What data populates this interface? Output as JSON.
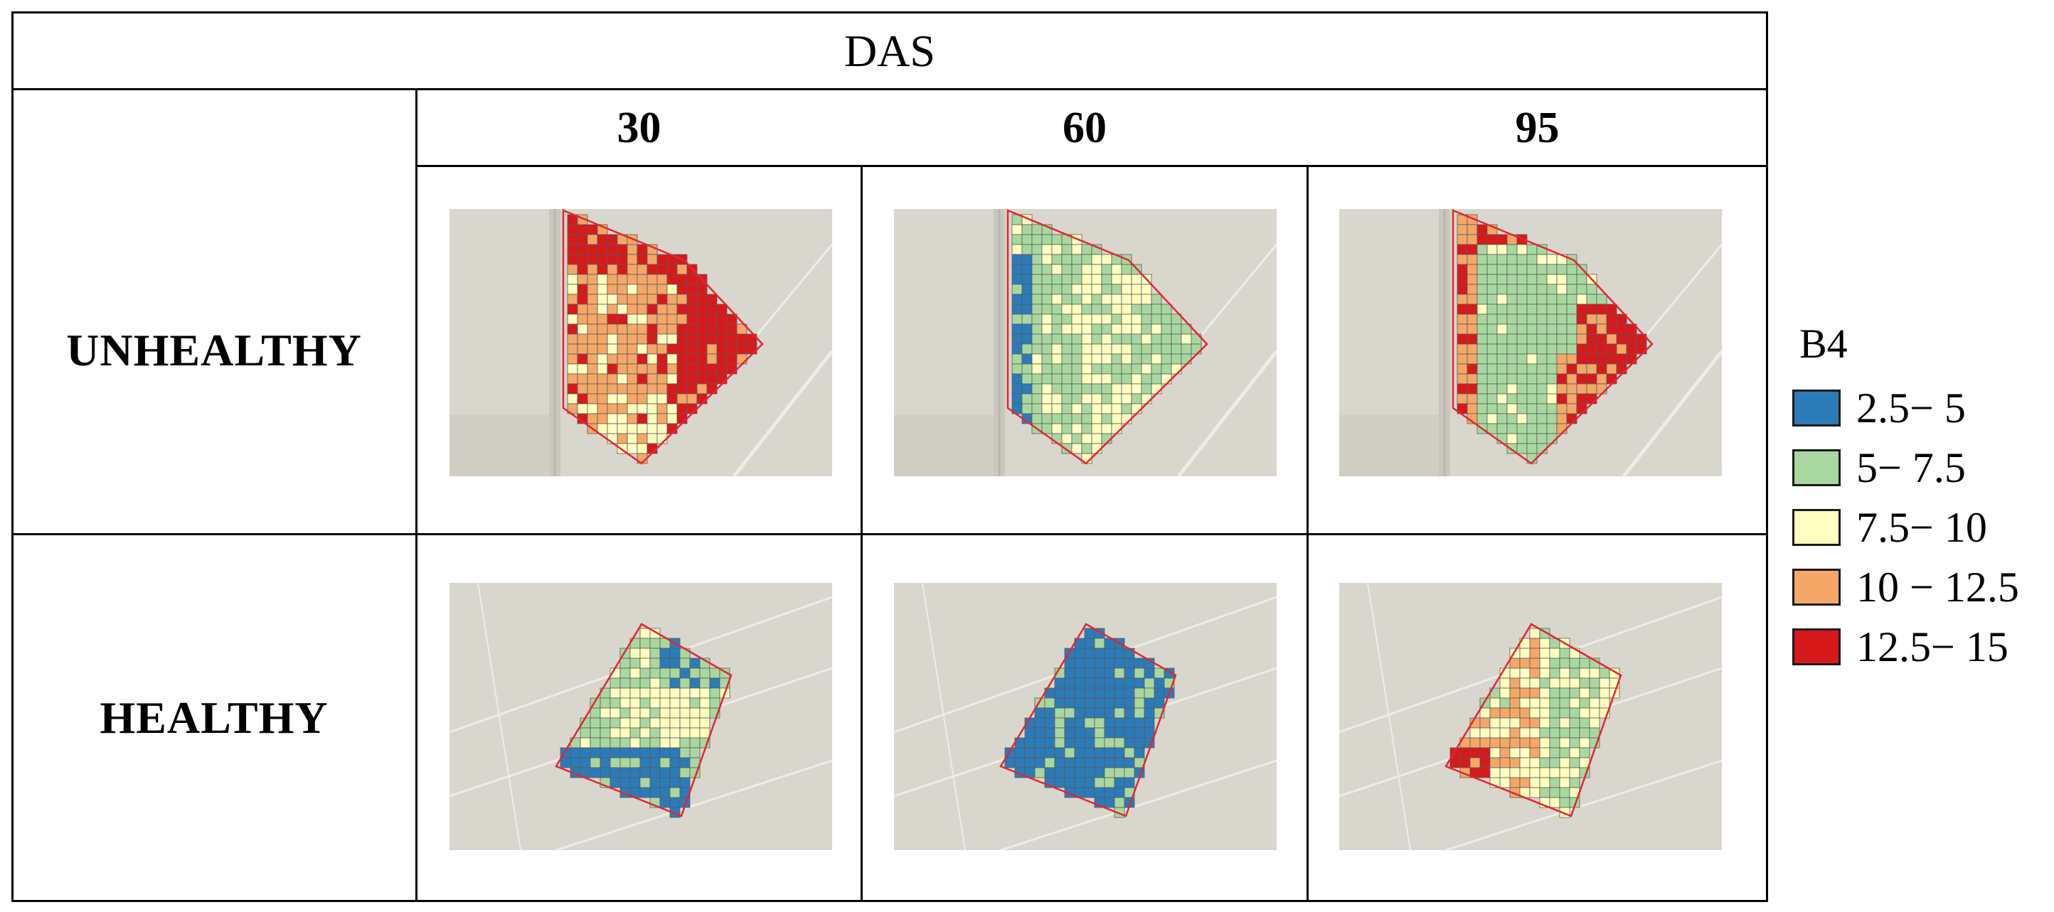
{
  "header": {
    "title": "DAS"
  },
  "columns": [
    {
      "label": "30"
    },
    {
      "label": "60"
    },
    {
      "label": "95"
    }
  ],
  "rows": [
    {
      "label": "UNHEALTHY"
    },
    {
      "label": "HEALTHY"
    }
  ],
  "legend": {
    "title": "B4",
    "items": [
      {
        "label": "2.5− 5",
        "color": "#2b7bb9"
      },
      {
        "label": "5− 7.5",
        "color": "#a8d8a0"
      },
      {
        "label": "7.5− 10",
        "color": "#ffffbf"
      },
      {
        "label": "10 − 12.5",
        "color": "#f4a767"
      },
      {
        "label": "12.5− 15",
        "color": "#d7191c"
      }
    ]
  },
  "colors": {
    "background_field": "#d9d6cd",
    "field_boundary": "#e3262f",
    "grid_line": "#5a5a5a"
  },
  "maps": [
    {
      "row": "UNHEALTHY",
      "das": "30",
      "dominant_classes": [
        "12.5− 15",
        "10 − 12.5",
        "7.5− 10"
      ]
    },
    {
      "row": "UNHEALTHY",
      "das": "60",
      "dominant_classes": [
        "5− 7.5",
        "7.5− 10",
        "2.5− 5"
      ]
    },
    {
      "row": "UNHEALTHY",
      "das": "95",
      "dominant_classes": [
        "5− 7.5",
        "12.5− 15",
        "10 − 12.5"
      ]
    },
    {
      "row": "HEALTHY",
      "das": "30",
      "dominant_classes": [
        "5− 7.5",
        "2.5− 5",
        "7.5− 10"
      ]
    },
    {
      "row": "HEALTHY",
      "das": "60",
      "dominant_classes": [
        "2.5− 5",
        "5− 7.5"
      ]
    },
    {
      "row": "HEALTHY",
      "das": "95",
      "dominant_classes": [
        "7.5− 10",
        "5− 7.5",
        "10 − 12.5",
        "12.5− 15"
      ]
    }
  ]
}
